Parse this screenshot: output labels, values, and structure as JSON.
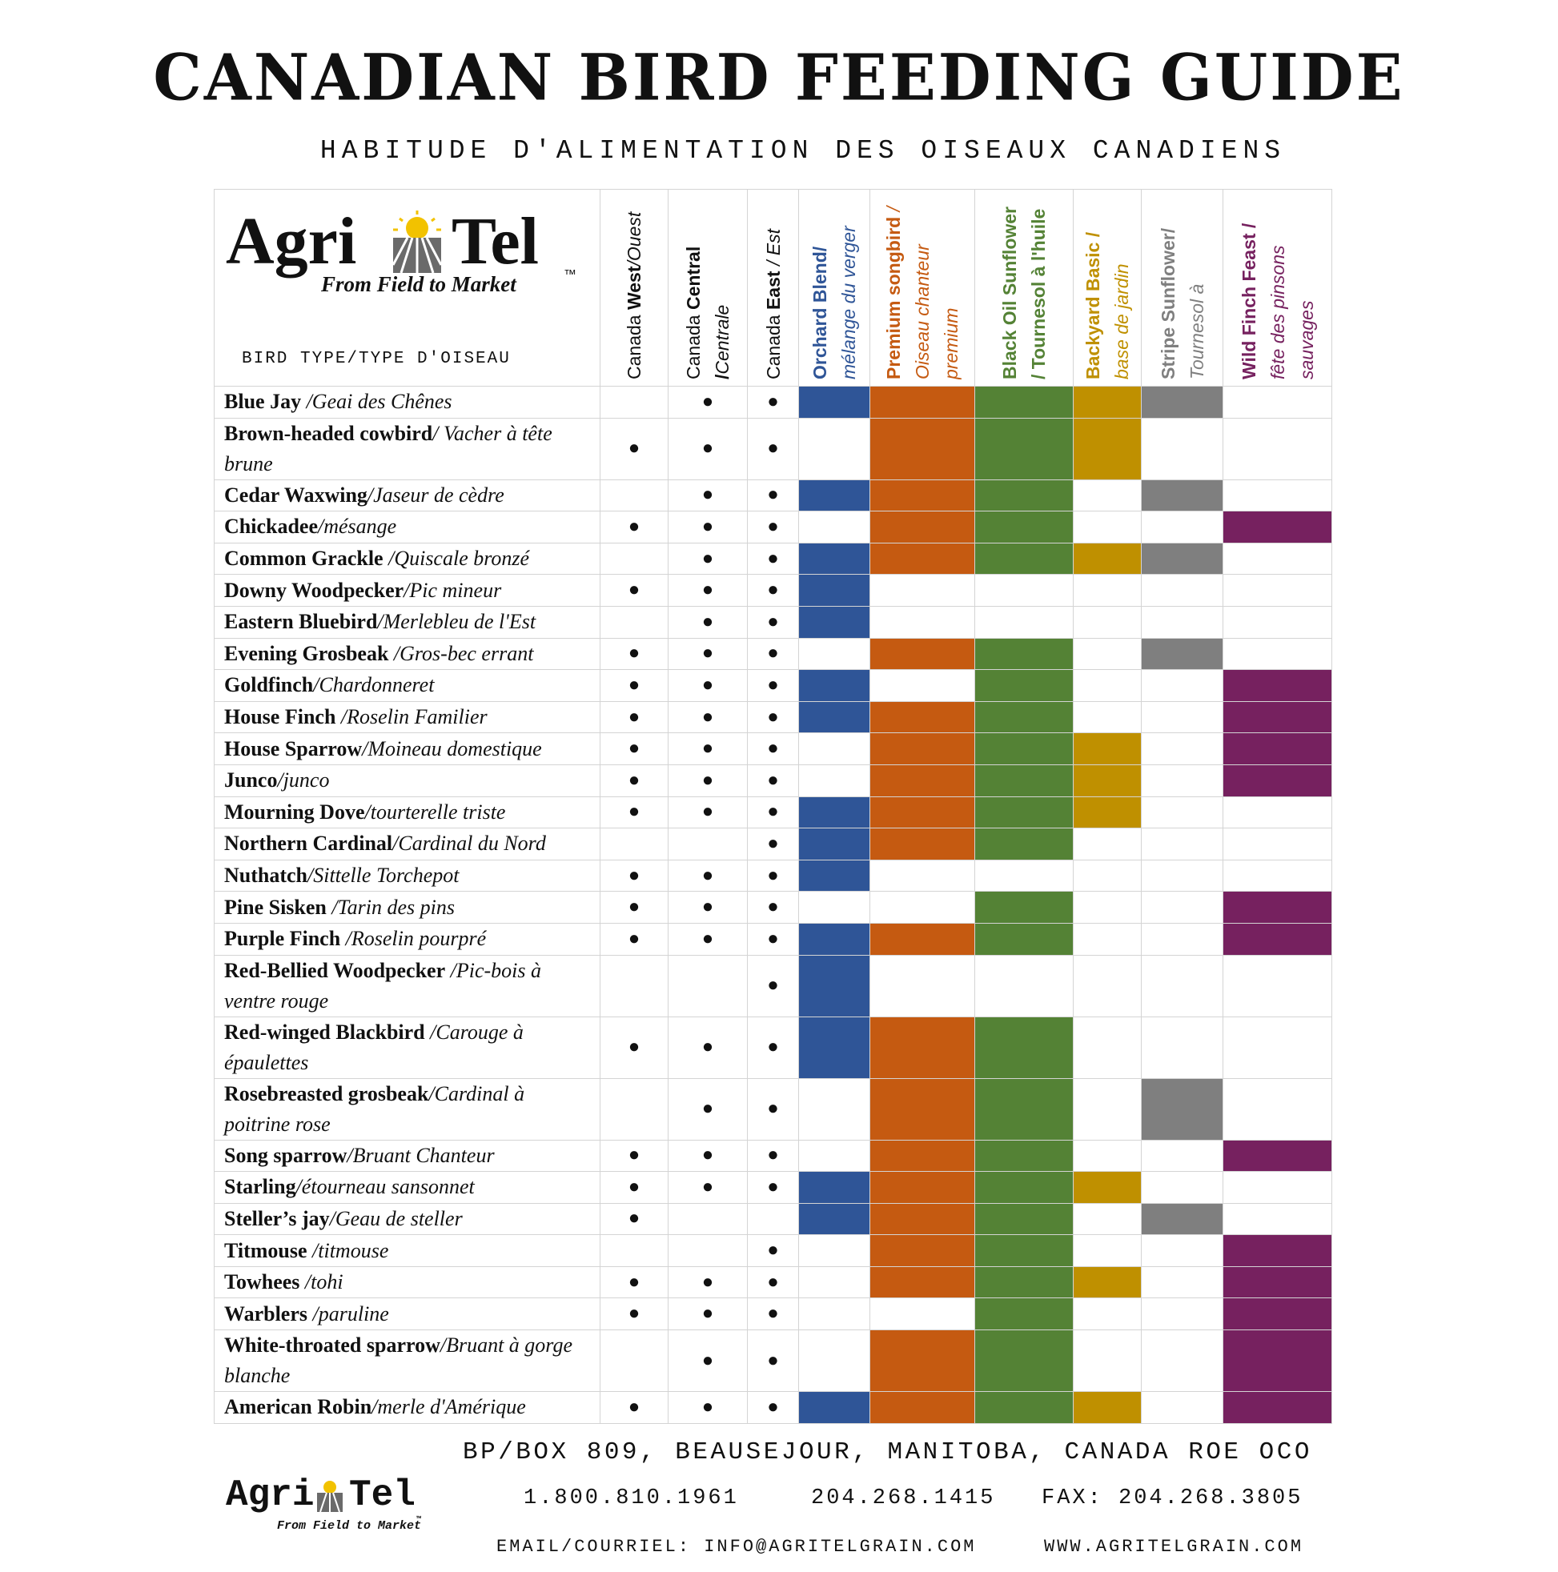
{
  "header": {
    "title": "CANADIAN BIRD FEEDING GUIDE",
    "subtitle": "HABITUDE D'ALIMENTATION DES OISEAUX CANADIENS"
  },
  "logo": {
    "agri": "Agri",
    "tel": "Tel",
    "tagline": "From Field to Market",
    "tm": "™"
  },
  "table": {
    "bird_type_header": "BIRD TYPE/TYPE D'OISEAU",
    "dot": "●",
    "regions": [
      {
        "plain": "Canada ",
        "bold": "West",
        "italic": "/Ouest"
      },
      {
        "plain": "Canada ",
        "bold": "Central /",
        "italic": "Centrale"
      },
      {
        "plain": "Canada ",
        "bold": "East",
        "italic": " / Est"
      }
    ],
    "feeds": [
      {
        "bold": "Orchard Blend/",
        "italic": "mélange du verger",
        "color": "#2f5597"
      },
      {
        "bold": "Premium songbird",
        "italic": "/ Oiseau chanteur premium",
        "color": "#c55a11"
      },
      {
        "bold": "Black Oil Sunflower / Tournesol à l'huile",
        "color": "#548235"
      },
      {
        "bold": "Backyard Basic /",
        "italic": "base de jardin",
        "color": "#bf9000"
      },
      {
        "bold": "Stripe Sunflower/",
        "italic": "Tournesol à",
        "color": "#7f7f7f"
      },
      {
        "bold": "Wild Finch Feast /",
        "italic": "fête des pinsons sauvages",
        "color": "#76215f"
      }
    ],
    "rows": [
      {
        "english": "Blue Jay",
        "french": " /Geai des Chênes",
        "regions": [
          false,
          true,
          true
        ],
        "feeds": [
          true,
          true,
          true,
          true,
          true,
          false
        ]
      },
      {
        "english": "Brown-headed cowbird",
        "french": "/ Vacher à tête brune",
        "regions": [
          true,
          true,
          true
        ],
        "feeds": [
          false,
          true,
          true,
          true,
          false,
          false
        ]
      },
      {
        "english": "Cedar Waxwing",
        "french": "/Jaseur de cèdre",
        "regions": [
          false,
          true,
          true
        ],
        "feeds": [
          true,
          true,
          true,
          false,
          true,
          false
        ]
      },
      {
        "english": "Chickadee",
        "french": "/mésange",
        "regions": [
          true,
          true,
          true
        ],
        "feeds": [
          false,
          true,
          true,
          false,
          false,
          true
        ]
      },
      {
        "english": "Common Grackle",
        "french": " /Quiscale bronzé",
        "regions": [
          false,
          true,
          true
        ],
        "feeds": [
          true,
          true,
          true,
          true,
          true,
          false
        ]
      },
      {
        "english": "Downy Woodpecker",
        "french": "/Pic mineur",
        "regions": [
          true,
          true,
          true
        ],
        "feeds": [
          true,
          false,
          false,
          false,
          false,
          false
        ]
      },
      {
        "english": "Eastern Bluebird",
        "french": "/Merlebleu de l'Est",
        "regions": [
          false,
          true,
          true
        ],
        "feeds": [
          true,
          false,
          false,
          false,
          false,
          false
        ]
      },
      {
        "english": "Evening Grosbeak",
        "french": " /Gros-bec errant",
        "regions": [
          true,
          true,
          true
        ],
        "feeds": [
          false,
          true,
          true,
          false,
          true,
          false
        ]
      },
      {
        "english": "Goldfinch",
        "french": "/Chardonneret",
        "regions": [
          true,
          true,
          true
        ],
        "feeds": [
          true,
          false,
          true,
          false,
          false,
          true
        ]
      },
      {
        "english": "House Finch",
        "french": " /Roselin Familier",
        "regions": [
          true,
          true,
          true
        ],
        "feeds": [
          true,
          true,
          true,
          false,
          false,
          true
        ]
      },
      {
        "english": "House Sparrow",
        "french": "/Moineau domestique",
        "regions": [
          true,
          true,
          true
        ],
        "feeds": [
          false,
          true,
          true,
          true,
          false,
          true
        ]
      },
      {
        "english": "Junco",
        "french": "/junco",
        "regions": [
          true,
          true,
          true
        ],
        "feeds": [
          false,
          true,
          true,
          true,
          false,
          true
        ]
      },
      {
        "english": "Mourning Dove",
        "french": "/tourterelle triste",
        "regions": [
          true,
          true,
          true
        ],
        "feeds": [
          true,
          true,
          true,
          true,
          false,
          false
        ]
      },
      {
        "english": "Northern Cardinal",
        "french": "/Cardinal du Nord",
        "regions": [
          false,
          false,
          true
        ],
        "feeds": [
          true,
          true,
          true,
          false,
          false,
          false
        ]
      },
      {
        "english": "Nuthatch",
        "french": "/Sittelle Torchepot",
        "regions": [
          true,
          true,
          true
        ],
        "feeds": [
          true,
          false,
          false,
          false,
          false,
          false
        ]
      },
      {
        "english": "Pine Sisken",
        "french": " /Tarin des pins",
        "regions": [
          true,
          true,
          true
        ],
        "feeds": [
          false,
          false,
          true,
          false,
          false,
          true
        ]
      },
      {
        "english": "Purple Finch",
        "french": " /Roselin pourpré",
        "regions": [
          true,
          true,
          true
        ],
        "feeds": [
          true,
          true,
          true,
          false,
          false,
          true
        ]
      },
      {
        "english": "Red-Bellied Woodpecker",
        "french": " /Pic-bois à ventre rouge",
        "regions": [
          false,
          false,
          true
        ],
        "feeds": [
          true,
          false,
          false,
          false,
          false,
          false
        ]
      },
      {
        "english": "Red-winged Blackbird",
        "french": " /Carouge à épaulettes",
        "regions": [
          true,
          true,
          true
        ],
        "feeds": [
          true,
          true,
          true,
          false,
          false,
          false
        ]
      },
      {
        "english": "Rosebreasted grosbeak",
        "french": "/Cardinal à poitrine rose",
        "regions": [
          false,
          true,
          true
        ],
        "feeds": [
          false,
          true,
          true,
          false,
          true,
          false
        ]
      },
      {
        "english": "Song sparrow",
        "french": "/Bruant Chanteur",
        "regions": [
          true,
          true,
          true
        ],
        "feeds": [
          false,
          true,
          true,
          false,
          false,
          true
        ]
      },
      {
        "english": "Starling",
        "french": "/étourneau sansonnet",
        "regions": [
          true,
          true,
          true
        ],
        "feeds": [
          true,
          true,
          true,
          true,
          false,
          false
        ]
      },
      {
        "english": "Steller’s jay",
        "french": "/Geau de steller",
        "regions": [
          true,
          false,
          false
        ],
        "feeds": [
          true,
          true,
          true,
          false,
          true,
          false
        ]
      },
      {
        "english": "Titmouse",
        "french": " /titmouse",
        "regions": [
          false,
          false,
          true
        ],
        "feeds": [
          false,
          true,
          true,
          false,
          false,
          true
        ]
      },
      {
        "english": "Towhees",
        "french": " /tohi",
        "regions": [
          true,
          true,
          true
        ],
        "feeds": [
          false,
          true,
          true,
          true,
          false,
          true
        ]
      },
      {
        "english": "Warblers",
        "french": " /paruline",
        "regions": [
          true,
          true,
          true
        ],
        "feeds": [
          false,
          false,
          true,
          false,
          false,
          true
        ]
      },
      {
        "english": "White-throated sparrow",
        "french": "/Bruant à gorge blanche",
        "regions": [
          false,
          true,
          true
        ],
        "feeds": [
          false,
          true,
          true,
          false,
          false,
          true
        ]
      },
      {
        "english": "American Robin",
        "french": "/merle d'Amérique",
        "regions": [
          true,
          true,
          true
        ],
        "feeds": [
          true,
          true,
          true,
          true,
          false,
          true
        ]
      }
    ]
  },
  "footer": {
    "address": "BP/BOX 809, BEAUSEJOUR, MANITOBA, CANADA ROE OCO",
    "phone1": "1.800.810.1961",
    "phone2": "204.268.1415",
    "fax": "FAX: 204.268.3805",
    "email": "EMAIL/COURRIEL: INFO@AGRITELGRAIN.COM",
    "web": "WWW.AGRITELGRAIN.COM"
  }
}
